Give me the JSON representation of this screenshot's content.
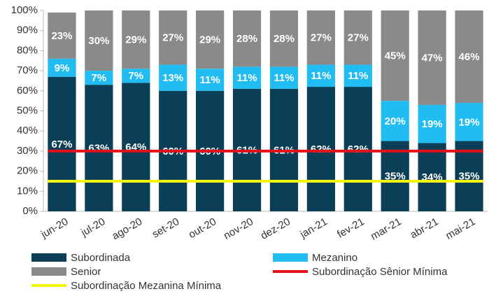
{
  "chart_data": {
    "type": "bar",
    "stacked": true,
    "categories": [
      "jun-20",
      "jul-20",
      "ago-20",
      "set-20",
      "out-20",
      "nov-20",
      "dez-20",
      "jan-21",
      "fev-21",
      "mar-21",
      "abr-21",
      "mai-21"
    ],
    "series": [
      {
        "name": "Subordinada",
        "color": "#0b3f57",
        "values": [
          67,
          63,
          64,
          60,
          60,
          61,
          61,
          62,
          62,
          35,
          34,
          35
        ],
        "value_labels": [
          "67%",
          "63%",
          "64%",
          "60%",
          "60%",
          "61%",
          "61%",
          "62%",
          "62%",
          "35%",
          "34%",
          "35%"
        ]
      },
      {
        "name": "Mezanino",
        "color": "#21bdf2",
        "values": [
          9,
          7,
          7,
          13,
          11,
          11,
          11,
          11,
          11,
          20,
          19,
          19
        ],
        "value_labels": [
          "9%",
          "7%",
          "7%",
          "13%",
          "11%",
          "11%",
          "11%",
          "11%",
          "11%",
          "20%",
          "19%",
          "19%"
        ]
      },
      {
        "name": "Senior",
        "color": "#8a8a8a",
        "values": [
          23,
          30,
          29,
          27,
          29,
          28,
          28,
          27,
          27,
          45,
          47,
          46
        ],
        "value_labels": [
          "23%",
          "30%",
          "29%",
          "27%",
          "29%",
          "28%",
          "28%",
          "27%",
          "27%",
          "45%",
          "47%",
          "46%"
        ]
      }
    ],
    "lines": [
      {
        "name": "Subordinação Sênior Mínima",
        "color": "#e3101a",
        "value": 30
      },
      {
        "name": "Subordinação Mezanina Mínima",
        "color": "#f4f40c",
        "value": 15
      }
    ],
    "ylim": [
      0,
      100
    ],
    "yticks": [
      {
        "value": 0,
        "label": "0%"
      },
      {
        "value": 10,
        "label": "10%"
      },
      {
        "value": 20,
        "label": "20%"
      },
      {
        "value": 30,
        "label": "30%"
      },
      {
        "value": 40,
        "label": "40%"
      },
      {
        "value": 50,
        "label": "50%"
      },
      {
        "value": 60,
        "label": "60%"
      },
      {
        "value": 70,
        "label": "70%"
      },
      {
        "value": 80,
        "label": "80%"
      },
      {
        "value": 90,
        "label": "90%"
      },
      {
        "value": 100,
        "label": "100%"
      }
    ],
    "grid": false
  }
}
